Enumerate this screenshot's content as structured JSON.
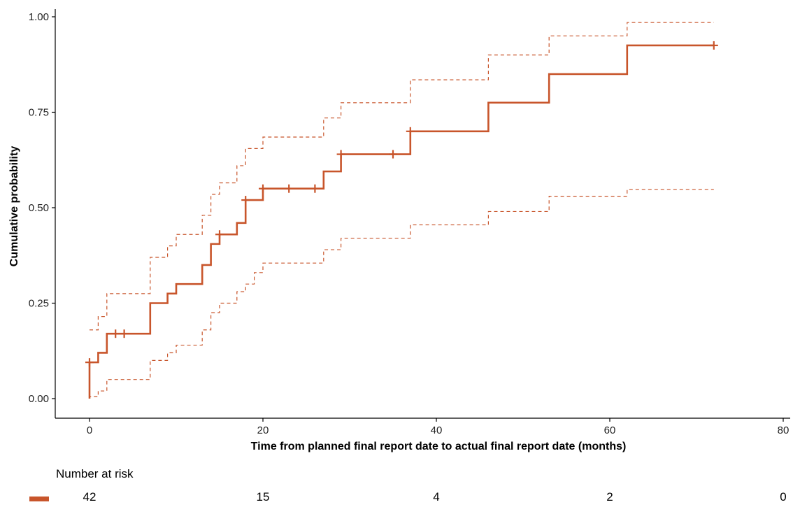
{
  "chart_data": {
    "type": "line",
    "subtype": "kaplan-meier cumulative incidence step",
    "title": "",
    "xlabel": "Time from planned final report date to actual final report date (months)",
    "ylabel": "Cumulative probability",
    "xlim": [
      0,
      80
    ],
    "ylim": [
      0,
      1
    ],
    "x_ticks": [
      0,
      20,
      40,
      60,
      80
    ],
    "x_tick_labels": [
      "0",
      "20",
      "40",
      "60",
      "80"
    ],
    "y_ticks": [
      0,
      0.25,
      0.5,
      0.75,
      1.0
    ],
    "y_tick_labels": [
      "0.00",
      "0.25",
      "0.50",
      "0.75",
      "1.00"
    ],
    "grid": false,
    "line_color": "#C8552B",
    "series": [
      {
        "role": "estimate",
        "style": "solid",
        "steps": [
          [
            0,
            0
          ],
          [
            0,
            0.095
          ],
          [
            1,
            0.12
          ],
          [
            2,
            0.17
          ],
          [
            7,
            0.25
          ],
          [
            9,
            0.275
          ],
          [
            10,
            0.3
          ],
          [
            13,
            0.35
          ],
          [
            14,
            0.405
          ],
          [
            15,
            0.43
          ],
          [
            17,
            0.46
          ],
          [
            18,
            0.52
          ],
          [
            19,
            0.52
          ],
          [
            20,
            0.55
          ],
          [
            27,
            0.595
          ],
          [
            29,
            0.64
          ],
          [
            37,
            0.7
          ],
          [
            46,
            0.775
          ],
          [
            53,
            0.85
          ],
          [
            62,
            0.925
          ],
          [
            72,
            0.925
          ]
        ]
      },
      {
        "role": "upper confidence limit",
        "style": "dashed",
        "steps": [
          [
            0,
            0.18
          ],
          [
            1,
            0.215
          ],
          [
            2,
            0.275
          ],
          [
            7,
            0.37
          ],
          [
            9,
            0.4
          ],
          [
            10,
            0.43
          ],
          [
            13,
            0.48
          ],
          [
            14,
            0.535
          ],
          [
            15,
            0.565
          ],
          [
            17,
            0.61
          ],
          [
            18,
            0.655
          ],
          [
            20,
            0.685
          ],
          [
            27,
            0.735
          ],
          [
            29,
            0.775
          ],
          [
            37,
            0.835
          ],
          [
            46,
            0.9
          ],
          [
            53,
            0.95
          ],
          [
            62,
            0.985
          ],
          [
            72,
            0.985
          ]
        ]
      },
      {
        "role": "lower confidence limit",
        "style": "dashed",
        "steps": [
          [
            0,
            0
          ],
          [
            0,
            0.005
          ],
          [
            1,
            0.02
          ],
          [
            2,
            0.05
          ],
          [
            7,
            0.1
          ],
          [
            9,
            0.12
          ],
          [
            10,
            0.14
          ],
          [
            13,
            0.18
          ],
          [
            14,
            0.225
          ],
          [
            15,
            0.25
          ],
          [
            17,
            0.28
          ],
          [
            18,
            0.3
          ],
          [
            19,
            0.33
          ],
          [
            20,
            0.355
          ],
          [
            27,
            0.39
          ],
          [
            29,
            0.42
          ],
          [
            37,
            0.455
          ],
          [
            46,
            0.49
          ],
          [
            53,
            0.53
          ],
          [
            62,
            0.548
          ],
          [
            72,
            0.548
          ]
        ]
      }
    ],
    "censor_marks": [
      [
        0,
        0.095
      ],
      [
        3,
        0.17
      ],
      [
        4,
        0.17
      ],
      [
        15,
        0.43
      ],
      [
        18,
        0.52
      ],
      [
        20,
        0.55
      ],
      [
        23,
        0.55
      ],
      [
        26,
        0.55
      ],
      [
        29,
        0.64
      ],
      [
        35,
        0.64
      ],
      [
        37,
        0.7
      ],
      [
        72,
        0.925
      ]
    ]
  },
  "risk_table": {
    "title": "Number at risk",
    "times": [
      0,
      20,
      40,
      60,
      80
    ],
    "counts": [
      "42",
      "15",
      "4",
      "2",
      "0"
    ]
  }
}
